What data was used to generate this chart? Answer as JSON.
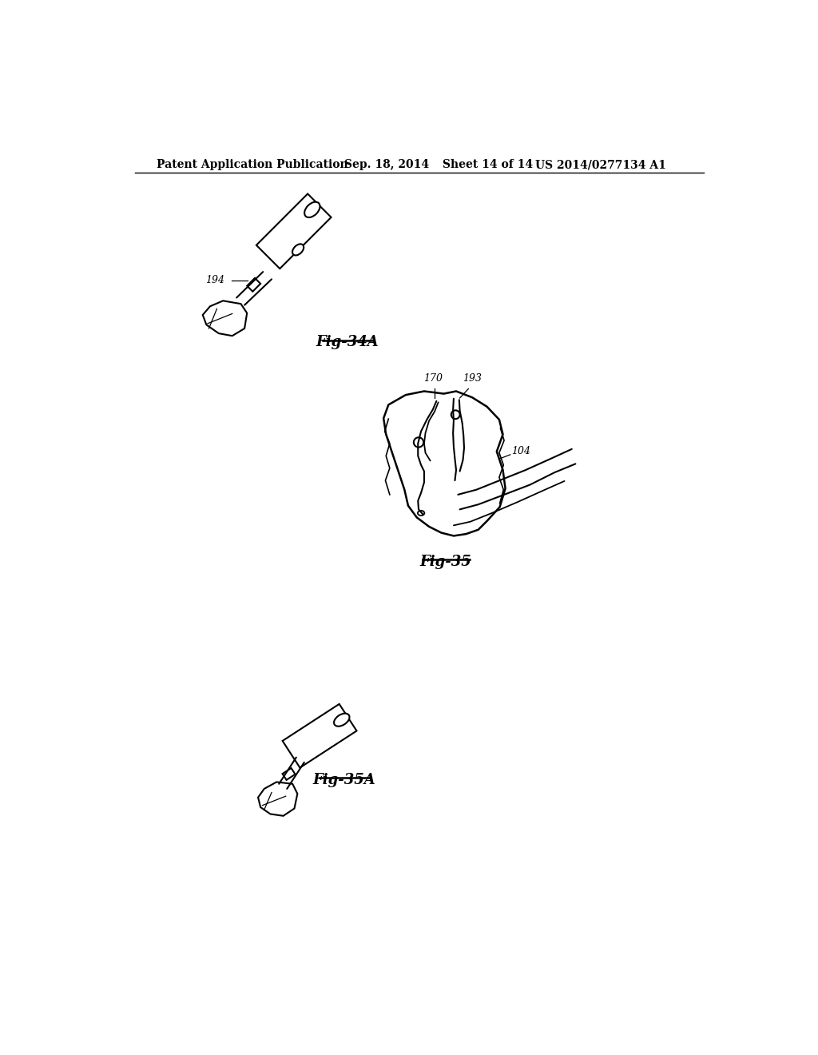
{
  "background_color": "#ffffff",
  "header_text": "Patent Application Publication",
  "header_date": "Sep. 18, 2014",
  "header_sheet": "Sheet 14 of 14",
  "header_patent": "US 2014/0277134 A1",
  "fig34a_label": "Fig-34A",
  "fig35_label": "Fig-35",
  "fig35a_label": "Fig-35A",
  "label_194": "194",
  "label_170": "170",
  "label_193": "193",
  "label_104": "104",
  "line_color": "#000000",
  "line_width": 1.5
}
